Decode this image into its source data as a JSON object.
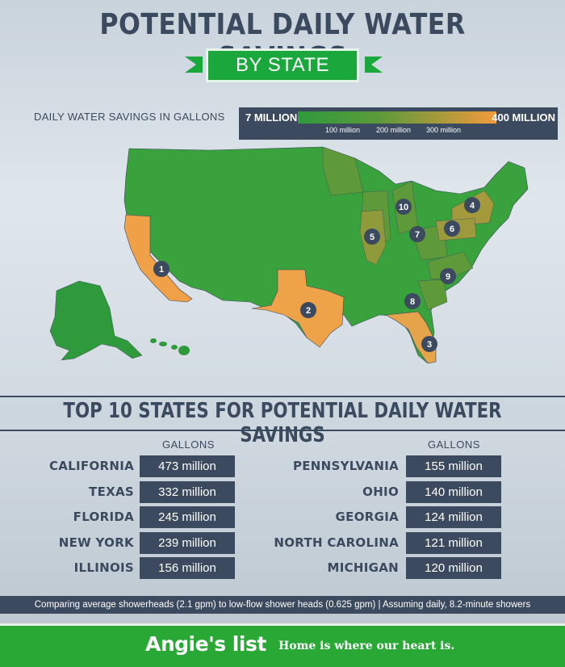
{
  "header": {
    "title": "POTENTIAL DAILY WATER SAVINGS",
    "subtitle": "BY STATE"
  },
  "legend": {
    "label": "DAILY WATER SAVINGS IN GALLONS",
    "min_label": "7 MILLION",
    "max_label": "400 MILLION",
    "ticks": [
      "100 million",
      "200 million",
      "300 million"
    ],
    "color_low": "#2f9a3c",
    "color_high": "#f29b3c"
  },
  "map": {
    "markers": [
      "1",
      "2",
      "3",
      "4",
      "5",
      "6",
      "7",
      "8",
      "9",
      "10"
    ]
  },
  "top10": {
    "title": "TOP 10 STATES FOR POTENTIAL DAILY WATER SAVINGS",
    "column_header": "GALLONS",
    "left": [
      {
        "state": "CALIFORNIA",
        "value": "473 million"
      },
      {
        "state": "TEXAS",
        "value": "332 million"
      },
      {
        "state": "FLORIDA",
        "value": "245 million"
      },
      {
        "state": "NEW YORK",
        "value": "239 million"
      },
      {
        "state": "ILLINOIS",
        "value": "156 million"
      }
    ],
    "right": [
      {
        "state": "PENNSYLVANIA",
        "value": "155 million"
      },
      {
        "state": "OHIO",
        "value": "140 million"
      },
      {
        "state": "GEORGIA",
        "value": "124 million"
      },
      {
        "state": "NORTH CAROLINA",
        "value": "121 million"
      },
      {
        "state": "MICHIGAN",
        "value": "120 million"
      }
    ]
  },
  "footnote": "Comparing average showerheads (2.1 gpm) to low-flow shower heads (0.625 gpm)  |  Assuming daily, 8.2-minute showers",
  "footer": {
    "brand": "Angie's list",
    "tagline": "Home is where our heart is."
  }
}
